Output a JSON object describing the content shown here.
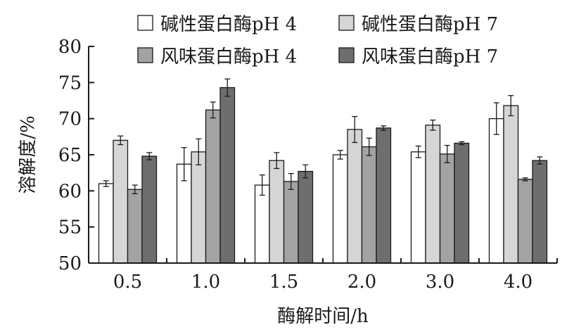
{
  "chart_data": {
    "type": "bar",
    "xlabel": "酶解时间/h",
    "ylabel": "溶解度/%",
    "ylim": [
      50,
      80
    ],
    "yticks": [
      50,
      55,
      60,
      65,
      70,
      75,
      80
    ],
    "categories": [
      "0.5",
      "1.0",
      "1.5",
      "2.0",
      "3.0",
      "4.0"
    ],
    "legend_position": "top",
    "grid": false,
    "series": [
      {
        "name": "碱性蛋白酶pH 4",
        "color": "#ffffff",
        "values": [
          61.0,
          63.7,
          60.8,
          65.0,
          65.4,
          70.0
        ],
        "errors": [
          0.4,
          2.3,
          1.4,
          0.6,
          0.8,
          2.2
        ]
      },
      {
        "name": "碱性蛋白酶pH 7",
        "color": "#d6d6d6",
        "values": [
          67.0,
          65.4,
          64.2,
          68.5,
          69.1,
          71.8
        ],
        "errors": [
          0.6,
          1.8,
          1.1,
          1.8,
          0.7,
          1.4
        ]
      },
      {
        "name": "风味蛋白酶pH 4",
        "color": "#a3a3a3",
        "values": [
          60.2,
          71.2,
          61.3,
          66.1,
          65.1,
          61.6
        ],
        "errors": [
          0.6,
          1.1,
          1.1,
          1.2,
          1.2,
          0.2
        ]
      },
      {
        "name": "风味蛋白酶pH 7",
        "color": "#6e6e6e",
        "values": [
          64.8,
          74.3,
          62.7,
          68.7,
          66.6,
          64.2
        ],
        "errors": [
          0.5,
          1.2,
          0.9,
          0.3,
          0.2,
          0.5
        ]
      }
    ]
  }
}
